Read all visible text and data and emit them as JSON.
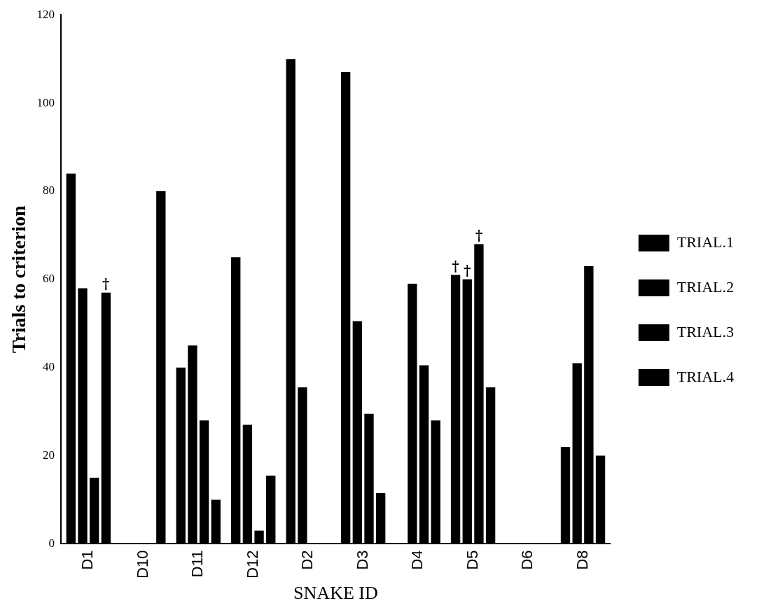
{
  "chart_data": {
    "type": "bar",
    "xlabel": "SNAKE ID",
    "ylabel": "Trials to criterion",
    "categories": [
      "D1",
      "D10",
      "D11",
      "D12",
      "D2",
      "D3",
      "D4",
      "D5",
      "D6",
      "D8"
    ],
    "series": [
      {
        "name": "TRIAL.1",
        "color": "#000000",
        "values": [
          84,
          null,
          40,
          65,
          110,
          107,
          null,
          61,
          null,
          22
        ]
      },
      {
        "name": "TRIAL.2",
        "color": "#000000",
        "values": [
          58,
          null,
          45,
          27,
          35.5,
          50.5,
          59,
          60,
          null,
          41
        ]
      },
      {
        "name": "TRIAL.3",
        "color": "#000000",
        "values": [
          15,
          null,
          28,
          3,
          null,
          29.5,
          40.5,
          68,
          null,
          63
        ]
      },
      {
        "name": "TRIAL.4",
        "color": "#000000",
        "values": [
          57,
          80,
          10,
          15.5,
          null,
          11.5,
          28,
          35.5,
          null,
          20
        ]
      }
    ],
    "ylim": [
      0,
      120
    ],
    "yticks": [
      0,
      20,
      40,
      60,
      80,
      100,
      120
    ],
    "grid": false,
    "legend": "right",
    "annotations": [
      {
        "text": "†",
        "x": "D1",
        "y": 57
      },
      {
        "text": "†",
        "x": "D5",
        "y": 61
      },
      {
        "text": "†",
        "x": "D5",
        "y": 60
      },
      {
        "text": "†",
        "x": "D5",
        "y": 68
      }
    ]
  }
}
